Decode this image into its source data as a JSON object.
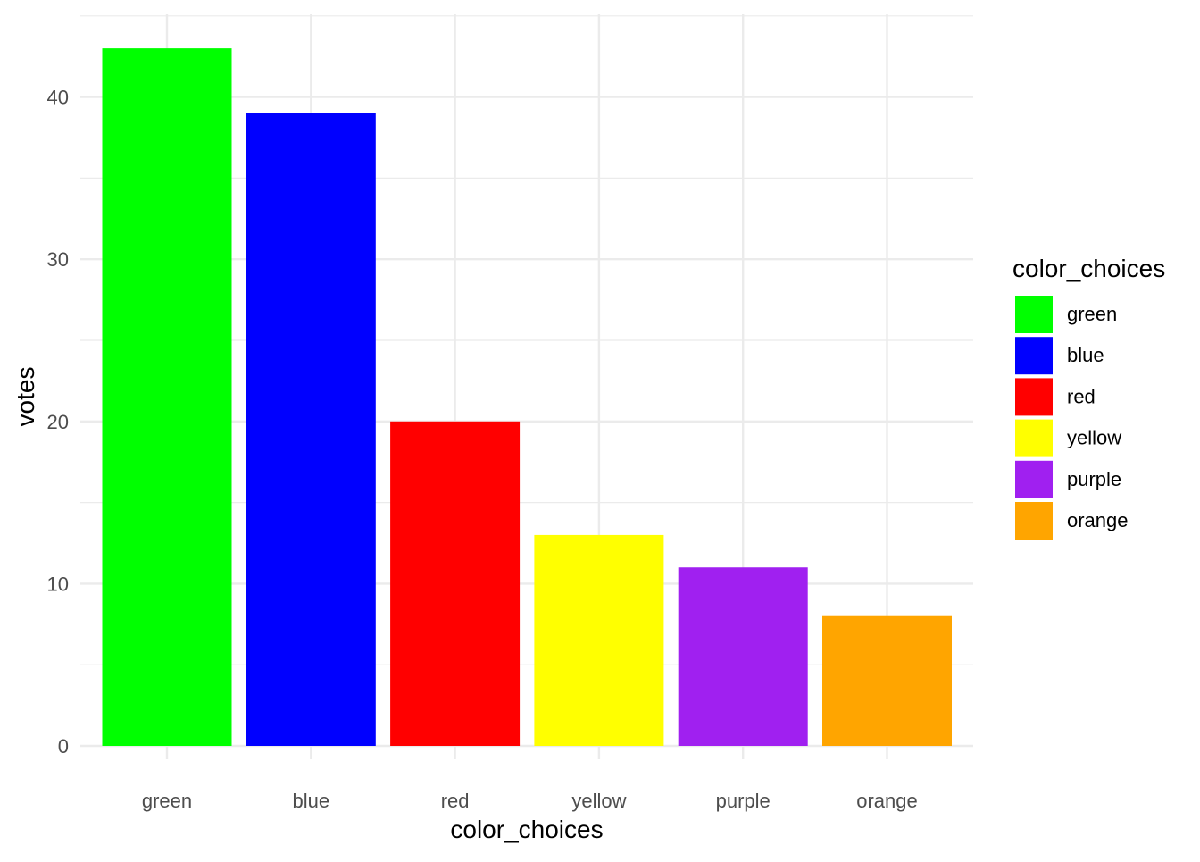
{
  "chart_data": {
    "type": "bar",
    "title": "",
    "xlabel": "color_choices",
    "ylabel": "votes",
    "categories": [
      "green",
      "blue",
      "red",
      "yellow",
      "purple",
      "orange"
    ],
    "values": [
      43,
      39,
      20,
      13,
      11,
      8
    ],
    "colors": [
      "#00ff00",
      "#0000ff",
      "#ff0000",
      "#ffff00",
      "#a020f0",
      "#ffa500"
    ],
    "ylim": [
      0,
      45
    ],
    "y_ticks": [
      0,
      10,
      20,
      30,
      40
    ],
    "grid": true,
    "legend": {
      "title": "color_choices",
      "placement": "right",
      "entries": [
        "green",
        "blue",
        "red",
        "yellow",
        "purple",
        "orange"
      ]
    }
  }
}
